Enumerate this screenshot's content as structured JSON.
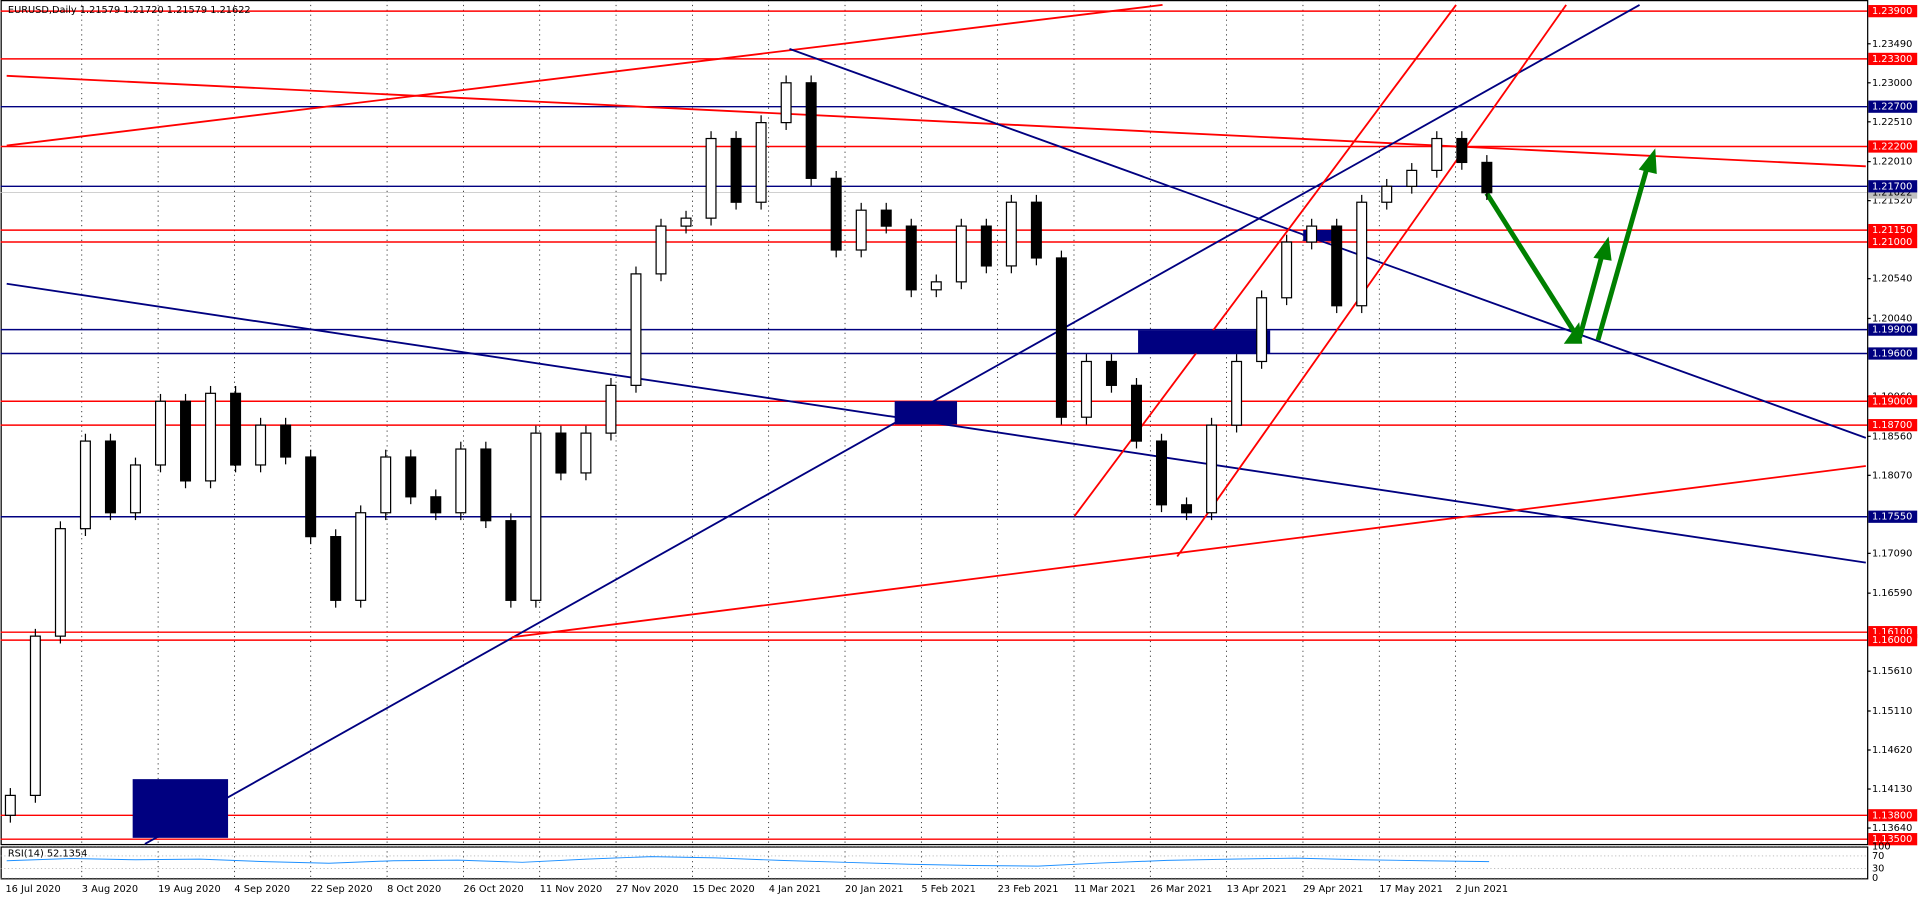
{
  "header": "EURUSD,Daily  1.21579 1.21720 1.21579 1.21622",
  "chart_data": {
    "type": "candlestick",
    "ylim": [
      1.1344,
      1.2404
    ],
    "yticks": [
      {
        "value": 1.2349,
        "label": "1.23490"
      },
      {
        "value": 1.23,
        "label": "1.23000"
      },
      {
        "value": 1.2251,
        "label": "1.22510"
      },
      {
        "value": 1.2201,
        "label": "1.22010"
      },
      {
        "value": 1.2152,
        "label": "1.21520"
      },
      {
        "value": 1.2054,
        "label": "1.20540"
      },
      {
        "value": 1.2004,
        "label": "1.20040"
      },
      {
        "value": 1.1906,
        "label": "1.19060"
      },
      {
        "value": 1.1856,
        "label": "1.18560"
      },
      {
        "value": 1.1807,
        "label": "1.18070"
      },
      {
        "value": 1.1709,
        "label": "1.17090"
      },
      {
        "value": 1.1659,
        "label": "1.16590"
      },
      {
        "value": 1.1561,
        "label": "1.15610"
      },
      {
        "value": 1.1511,
        "label": "1.15110"
      },
      {
        "value": 1.1462,
        "label": "1.14620"
      },
      {
        "value": 1.1413,
        "label": "1.14130"
      },
      {
        "value": 1.1364,
        "label": "1.13640"
      }
    ],
    "last_price": {
      "value": 1.21622,
      "label": "1.21622"
    },
    "levels": [
      {
        "value": 1.239,
        "label": "1.23900",
        "color": "#ff0000"
      },
      {
        "value": 1.233,
        "label": "1.23300",
        "color": "#ff0000"
      },
      {
        "value": 1.227,
        "label": "1.22700",
        "color": "#000080"
      },
      {
        "value": 1.222,
        "label": "1.22200",
        "color": "#ff0000"
      },
      {
        "value": 1.217,
        "label": "1.21700",
        "color": "#000080"
      },
      {
        "value": 1.2115,
        "label": "1.21150",
        "color": "#ff0000"
      },
      {
        "value": 1.21,
        "label": "1.21000",
        "color": "#ff0000"
      },
      {
        "value": 1.199,
        "label": "1.19900",
        "color": "#000080"
      },
      {
        "value": 1.196,
        "label": "1.19600",
        "color": "#000080"
      },
      {
        "value": 1.19,
        "label": "1.19000",
        "color": "#ff0000"
      },
      {
        "value": 1.187,
        "label": "1.18700",
        "color": "#ff0000"
      },
      {
        "value": 1.1755,
        "label": "1.17550",
        "color": "#000080"
      },
      {
        "value": 1.161,
        "label": "1.16100",
        "color": "#ff0000"
      },
      {
        "value": 1.16,
        "label": "1.16000",
        "color": "#ff0000"
      },
      {
        "value": 1.138,
        "label": "1.13800",
        "color": "#ff0000"
      },
      {
        "value": 1.135,
        "label": "1.13500",
        "color": "#ff0000"
      }
    ],
    "x_labels": [
      "16 Jul 2020",
      "3 Aug 2020",
      "19 Aug 2020",
      "4 Sep 2020",
      "22 Sep 2020",
      "8 Oct 2020",
      "26 Oct 2020",
      "11 Nov 2020",
      "27 Nov 2020",
      "15 Dec 2020",
      "4 Jan 2021",
      "20 Jan 2021",
      "5 Feb 2021",
      "23 Feb 2021",
      "11 Mar 2021",
      "26 Mar 2021",
      "13 Apr 2021",
      "29 Apr 2021",
      "17 May 2021",
      "2 Jun 2021"
    ],
    "close": [
      1.1405,
      1.1605,
      1.174,
      1.185,
      1.176,
      1.182,
      1.19,
      1.18,
      1.191,
      1.182,
      1.187,
      1.183,
      1.173,
      1.165,
      1.176,
      1.183,
      1.178,
      1.176,
      1.184,
      1.175,
      1.165,
      1.186,
      1.181,
      1.186,
      1.192,
      1.206,
      1.212,
      1.213,
      1.223,
      1.215,
      1.225,
      1.23,
      1.218,
      1.209,
      1.214,
      1.212,
      1.204,
      1.205,
      1.212,
      1.207,
      1.215,
      1.208,
      1.188,
      1.195,
      1.192,
      1.185,
      1.177,
      1.176,
      1.187,
      1.195,
      1.203,
      1.21,
      1.212,
      1.202,
      1.215,
      1.217,
      1.219,
      1.223,
      1.22,
      1.2162
    ],
    "rsi_label": "RSI(14) 52.1354",
    "rsi": [
      55,
      62,
      58,
      60,
      52,
      47,
      55,
      57,
      50,
      60,
      68,
      64,
      56,
      50,
      44,
      40,
      38,
      48,
      56,
      60,
      63,
      58,
      55,
      52
    ],
    "rsi_ticks": [
      100,
      70,
      30,
      0
    ]
  }
}
